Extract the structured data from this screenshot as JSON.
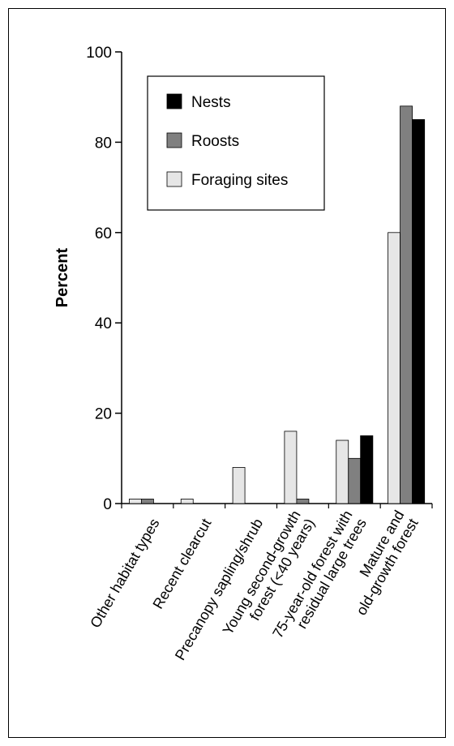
{
  "chart_data": {
    "type": "bar",
    "title": "",
    "xlabel": "",
    "ylabel": "Percent",
    "ylim": [
      0,
      100
    ],
    "yticks": [
      0,
      20,
      40,
      60,
      80,
      100
    ],
    "grid": false,
    "legend_position": "top-left",
    "categories": [
      [
        "Other habitat types"
      ],
      [
        "Recent clearcut"
      ],
      [
        "Precanopy sapling/shrub"
      ],
      [
        "Young second-growth",
        "forest (<40 years)"
      ],
      [
        "75-year-old forest with",
        "residual large trees"
      ],
      [
        "Mature and",
        "old-growth forest"
      ]
    ],
    "series": [
      {
        "name": "Foraging sites",
        "color": "#e6e6e6",
        "values": [
          1,
          1,
          8,
          16,
          14,
          60
        ]
      },
      {
        "name": "Roosts",
        "color": "#808080",
        "values": [
          1,
          0,
          0,
          1,
          10,
          88
        ]
      },
      {
        "name": "Nests",
        "color": "#000000",
        "values": [
          0,
          0,
          0,
          0,
          15,
          85
        ]
      }
    ],
    "legend_order": [
      "Nests",
      "Roosts",
      "Foraging sites"
    ]
  }
}
